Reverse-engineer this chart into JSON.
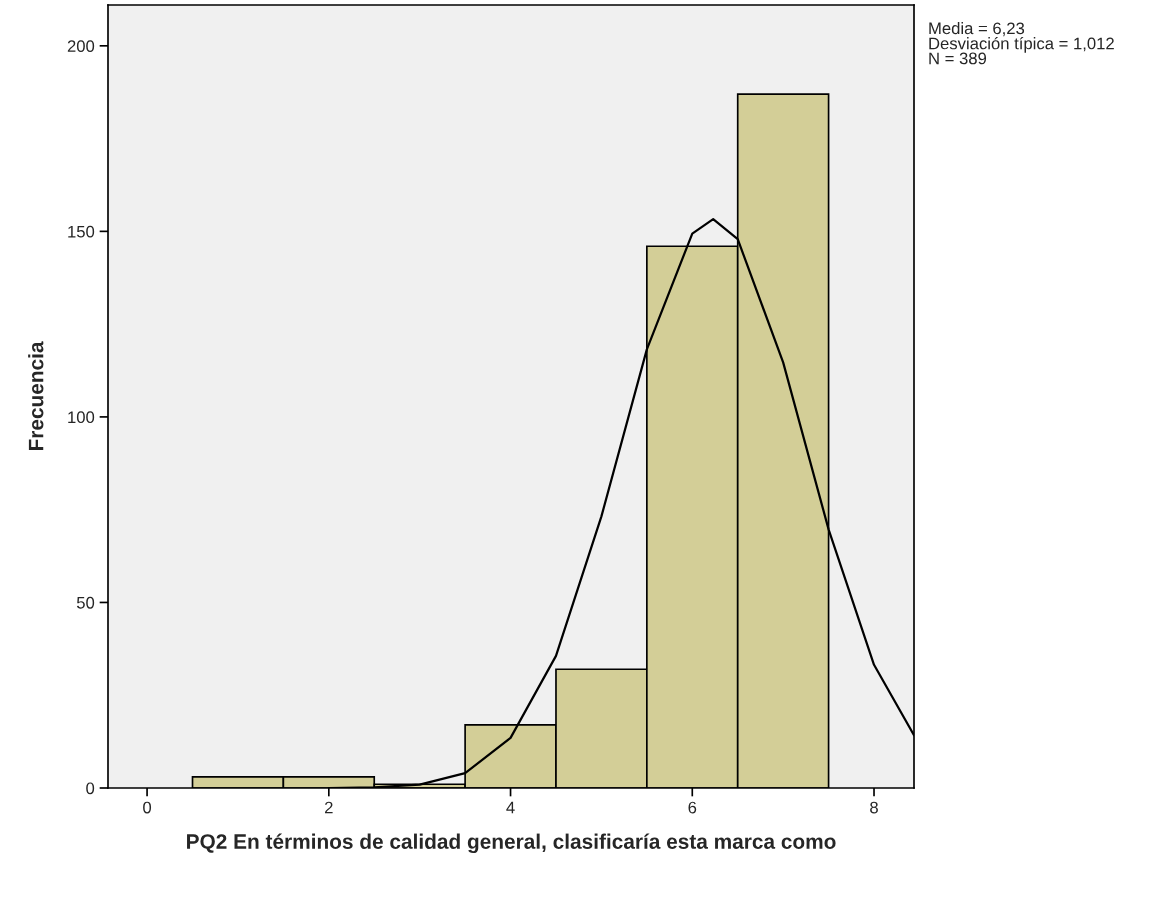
{
  "chart_data": {
    "type": "histogram",
    "xlabel": "PQ2 En términos de calidad general, clasificaría esta marca como",
    "ylabel": "Frecuencia",
    "bins": [
      0.5,
      1.5,
      2.5,
      3.5,
      4.5,
      5.5,
      6.5,
      7.5
    ],
    "values": [
      3,
      3,
      1,
      17,
      32,
      146,
      187
    ],
    "color": "#d3ce97",
    "series": [
      {
        "type": "line",
        "color": "#000000",
        "x": [
          2.0,
          2.5,
          3.0,
          3.5,
          4.0,
          4.5,
          5.0,
          5.5,
          6.0,
          6.23,
          6.5,
          7.0,
          7.5,
          8.0,
          8.44
        ],
        "values": [
          0,
          0.2,
          0.9,
          4.0,
          13.5,
          35.6,
          73.2,
          118.2,
          149.4,
          153.3,
          147.9,
          114.7,
          69.7,
          33.2,
          14.2
        ]
      }
    ],
    "xlim": [
      -0.43,
      8.44
    ],
    "ylim": [
      0,
      211
    ],
    "xticks": [
      0,
      2,
      4,
      6,
      8
    ],
    "yticks": [
      0,
      50,
      100,
      150,
      200
    ],
    "grid": false,
    "legend": false,
    "annotations": [
      "Media = 6,23\nDesviación típica = 1,012\nN = 389"
    ]
  }
}
